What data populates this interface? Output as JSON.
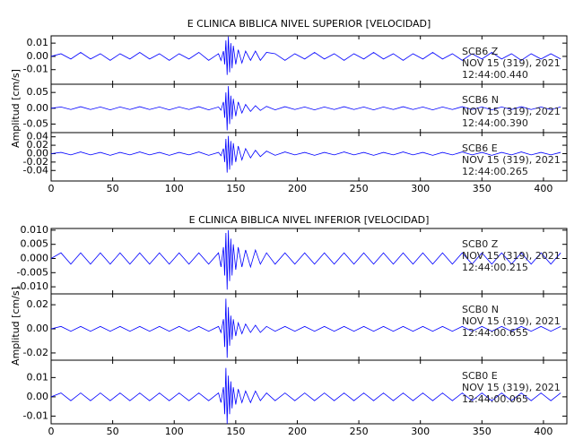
{
  "chart_data": [
    {
      "type": "line",
      "title": "E CLINICA BIBLICA NIVEL SUPERIOR [VELOCIDAD]",
      "ylabel": "Amplitud [cm/s]",
      "color": "#0000ff",
      "xlim": [
        0,
        419
      ],
      "xticks": [
        0,
        50,
        100,
        150,
        200,
        250,
        300,
        350,
        400
      ],
      "x": [
        0,
        8,
        16,
        24,
        32,
        40,
        48,
        56,
        64,
        72,
        80,
        88,
        96,
        104,
        112,
        120,
        128,
        136,
        138,
        140,
        141,
        142,
        143,
        144,
        145,
        146,
        147,
        148,
        150,
        152,
        155,
        158,
        162,
        166,
        170,
        175,
        182,
        190,
        198,
        206,
        214,
        222,
        230,
        238,
        246,
        254,
        262,
        270,
        278,
        286,
        294,
        302,
        310,
        318,
        326,
        334,
        342,
        350,
        358,
        366,
        374,
        382,
        390,
        398,
        406,
        414
      ],
      "panels": [
        {
          "annotation": [
            "SCB6   Z",
            "NOV 15 (319), 2021",
            "12:44:00.440"
          ],
          "ylim": [
            -0.021,
            0.0155
          ],
          "yticks": [
            0.01,
            {
              "value": 0,
              "label": "0.00"
            },
            -0.01
          ],
          "values": [
            0,
            0.002,
            -0.002,
            0.003,
            -0.002,
            0.002,
            -0.003,
            0.002,
            -0.002,
            0.003,
            -0.002,
            0.002,
            -0.003,
            0.002,
            -0.002,
            0.003,
            -0.003,
            0.002,
            -0.003,
            0.004,
            -0.006,
            0.012,
            -0.014,
            0.015,
            -0.012,
            0.01,
            -0.009,
            0.008,
            -0.006,
            0.005,
            -0.005,
            0.004,
            -0.003,
            0.004,
            -0.003,
            0.003,
            0.002,
            -0.003,
            0.002,
            -0.002,
            0.003,
            -0.002,
            0.002,
            -0.003,
            0.002,
            -0.002,
            0.003,
            -0.002,
            0.002,
            -0.003,
            0.002,
            -0.002,
            0.003,
            -0.002,
            0.002,
            -0.003,
            0.002,
            -0.002,
            0.003,
            -0.002,
            0.002,
            -0.003,
            0.002,
            -0.002,
            0.002,
            -0.002
          ]
        },
        {
          "annotation": [
            "SCB6   N",
            "NOV 15 (319), 2021",
            "12:44:00.390"
          ],
          "ylim": [
            -0.077,
            0.076
          ],
          "yticks": [
            0.05,
            {
              "value": 0,
              "label": "0.00"
            },
            -0.05
          ],
          "values": [
            0,
            0.004,
            -0.004,
            0.005,
            -0.004,
            0.004,
            -0.005,
            0.004,
            -0.004,
            0.005,
            -0.004,
            0.004,
            -0.005,
            0.004,
            -0.004,
            0.005,
            -0.005,
            0.004,
            -0.006,
            0.02,
            -0.03,
            0.05,
            -0.07,
            0.07,
            -0.05,
            0.04,
            -0.035,
            0.03,
            -0.025,
            0.02,
            -0.015,
            0.012,
            -0.01,
            0.008,
            -0.007,
            0.006,
            -0.005,
            0.005,
            -0.004,
            0.004,
            -0.005,
            0.004,
            -0.004,
            0.005,
            -0.004,
            0.004,
            -0.005,
            0.004,
            -0.004,
            0.005,
            -0.004,
            0.004,
            -0.005,
            0.004,
            -0.004,
            0.005,
            -0.004,
            0.004,
            -0.005,
            0.004,
            -0.004,
            0.005,
            -0.004,
            0.004,
            -0.004,
            0.004
          ]
        },
        {
          "annotation": [
            "SCB6   E",
            "NOV 15 (319), 2021",
            "12:44:00.265"
          ],
          "ylim": [
            -0.065,
            0.05
          ],
          "yticks": [
            0.04,
            0.02,
            {
              "value": 0,
              "label": "0.00"
            },
            -0.02,
            -0.04
          ],
          "values": [
            0,
            0.003,
            -0.003,
            0.004,
            -0.003,
            0.003,
            -0.004,
            0.003,
            -0.003,
            0.004,
            -0.003,
            0.003,
            -0.004,
            0.003,
            -0.003,
            0.004,
            -0.004,
            0.003,
            -0.005,
            0.012,
            -0.02,
            0.035,
            -0.045,
            0.042,
            -0.038,
            0.03,
            -0.028,
            0.025,
            -0.02,
            0.018,
            -0.015,
            0.012,
            -0.01,
            0.008,
            -0.007,
            0.006,
            -0.004,
            0.004,
            -0.003,
            0.003,
            -0.004,
            0.003,
            -0.003,
            0.004,
            -0.003,
            0.003,
            -0.004,
            0.003,
            -0.003,
            0.004,
            -0.003,
            0.003,
            -0.004,
            0.003,
            -0.003,
            0.004,
            -0.003,
            0.003,
            -0.004,
            0.003,
            -0.003,
            0.004,
            -0.003,
            0.003,
            -0.003,
            0.003
          ]
        }
      ]
    },
    {
      "type": "line",
      "title": "E CLINICA BIBLICA NIVEL INFERIOR [VELOCIDAD]",
      "ylabel": "Amplitud [cm/s]",
      "color": "#0000ff",
      "xlim": [
        0,
        419
      ],
      "xticks": [
        0,
        50,
        100,
        150,
        200,
        250,
        300,
        350,
        400
      ],
      "x": [
        0,
        8,
        16,
        24,
        32,
        40,
        48,
        56,
        64,
        72,
        80,
        88,
        96,
        104,
        112,
        120,
        128,
        136,
        138,
        140,
        141,
        142,
        143,
        144,
        145,
        146,
        147,
        148,
        150,
        152,
        155,
        158,
        162,
        166,
        170,
        175,
        182,
        190,
        198,
        206,
        214,
        222,
        230,
        238,
        246,
        254,
        262,
        270,
        278,
        286,
        294,
        302,
        310,
        318,
        326,
        334,
        342,
        350,
        358,
        366,
        374,
        382,
        390,
        398,
        406,
        414
      ],
      "panels": [
        {
          "annotation": [
            "SCB0   Z",
            "NOV 15 (319), 2021",
            "12:44:00.215"
          ],
          "ylim": [
            -0.0125,
            0.0106
          ],
          "yticks": [
            {
              "value": 0.01,
              "label": "0.010"
            },
            0.005,
            {
              "value": 0,
              "label": "0.000"
            },
            -0.005,
            {
              "value": -0.01,
              "label": "-0.010"
            }
          ],
          "values": [
            0,
            0.002,
            -0.002,
            0.002,
            -0.002,
            0.002,
            -0.002,
            0.002,
            -0.002,
            0.002,
            -0.002,
            0.002,
            -0.002,
            0.002,
            -0.002,
            0.002,
            -0.002,
            0.002,
            -0.003,
            0.004,
            -0.006,
            0.009,
            -0.011,
            0.01,
            -0.008,
            0.007,
            -0.006,
            0.005,
            -0.004,
            0.004,
            -0.003,
            0.003,
            -0.003,
            0.003,
            -0.002,
            0.002,
            -0.002,
            0.002,
            -0.002,
            0.002,
            -0.002,
            0.002,
            -0.002,
            0.002,
            -0.002,
            0.002,
            -0.002,
            0.002,
            -0.002,
            0.002,
            -0.002,
            0.002,
            -0.002,
            0.002,
            -0.002,
            0.002,
            -0.002,
            0.002,
            -0.002,
            0.002,
            -0.002,
            0.002,
            -0.002,
            0.002,
            -0.002,
            0.002
          ]
        },
        {
          "annotation": [
            "SCB0   N",
            "NOV 15 (319), 2021",
            "12:44:00.655"
          ],
          "ylim": [
            -0.026,
            0.029
          ],
          "yticks": [
            0.02,
            {
              "value": 0,
              "label": "0.00"
            },
            -0.02
          ],
          "values": [
            0,
            0.002,
            -0.002,
            0.002,
            -0.002,
            0.002,
            -0.002,
            0.002,
            -0.002,
            0.002,
            -0.002,
            0.002,
            -0.002,
            0.002,
            -0.002,
            0.002,
            -0.002,
            0.002,
            -0.003,
            0.008,
            -0.015,
            0.025,
            -0.024,
            0.018,
            -0.014,
            0.011,
            -0.009,
            0.008,
            -0.006,
            0.005,
            -0.004,
            0.004,
            -0.003,
            0.003,
            -0.003,
            0.002,
            -0.002,
            0.002,
            -0.002,
            0.002,
            -0.002,
            0.002,
            -0.002,
            0.002,
            -0.002,
            0.002,
            -0.002,
            0.002,
            -0.002,
            0.002,
            -0.002,
            0.002,
            -0.002,
            0.002,
            -0.002,
            0.002,
            -0.002,
            0.002,
            -0.002,
            0.002,
            -0.002,
            0.002,
            -0.002,
            0.002,
            -0.002,
            0.002
          ]
        },
        {
          "annotation": [
            "SCB0   E",
            "NOV 15 (319), 2021",
            "12:44:00.065"
          ],
          "ylim": [
            -0.014,
            0.019
          ],
          "yticks": [
            0.01,
            {
              "value": 0,
              "label": "0.00"
            },
            -0.01
          ],
          "values": [
            0,
            0.002,
            -0.002,
            0.002,
            -0.002,
            0.002,
            -0.002,
            0.002,
            -0.002,
            0.002,
            -0.002,
            0.002,
            -0.002,
            0.002,
            -0.002,
            0.002,
            -0.002,
            0.002,
            -0.003,
            0.005,
            -0.009,
            0.015,
            -0.014,
            0.011,
            -0.009,
            0.008,
            -0.006,
            0.005,
            -0.004,
            0.004,
            -0.003,
            0.003,
            -0.003,
            0.003,
            -0.002,
            0.002,
            -0.002,
            0.002,
            -0.002,
            0.002,
            -0.002,
            0.002,
            -0.002,
            0.002,
            -0.002,
            0.002,
            -0.002,
            0.002,
            -0.002,
            0.002,
            -0.002,
            0.002,
            -0.002,
            0.002,
            -0.002,
            0.002,
            -0.002,
            0.002,
            -0.002,
            0.002,
            -0.002,
            0.002,
            -0.002,
            0.002,
            -0.002,
            0.002
          ]
        }
      ]
    }
  ]
}
